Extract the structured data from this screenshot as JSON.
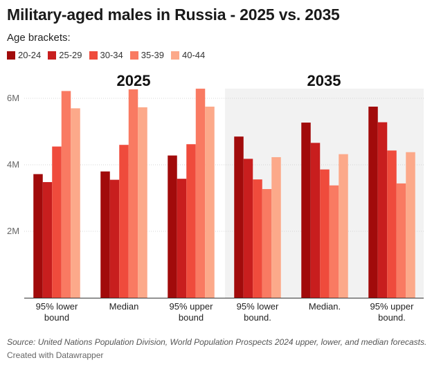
{
  "title": "Military-aged males in Russia - 2025 vs. 2035",
  "legend_title": "Age brackets:",
  "source": "Source: United Nations Population Division, World Population Prospects 2024 upper, lower, and median forecasts.",
  "credit": "Created with Datawrapper",
  "chart_data": {
    "type": "bar",
    "title": "Military-aged males in Russia - 2025 vs. 2035",
    "xlabel": "",
    "ylabel": "",
    "ylim": [
      0,
      6
    ],
    "yticks": [
      {
        "value": 2,
        "label": "2M"
      },
      {
        "value": 4,
        "label": "4M"
      },
      {
        "value": 6,
        "label": "6M"
      }
    ],
    "grid": true,
    "legend_placement": "top-left",
    "panels": [
      {
        "label": "2025",
        "shaded": false,
        "categories": [
          "95% lower|bound",
          "Median",
          "95% upper|bound"
        ]
      },
      {
        "label": "2035",
        "shaded": true,
        "categories": [
          "95% lower|bound.",
          "Median.",
          "95% upper|bound."
        ]
      }
    ],
    "series": [
      {
        "name": "20-24",
        "color": "#a10b0b",
        "values": [
          3.72,
          3.8,
          4.28,
          4.85,
          5.27,
          5.75
        ]
      },
      {
        "name": "25-29",
        "color": "#c81e1e",
        "values": [
          3.48,
          3.55,
          3.58,
          4.18,
          4.66,
          5.28
        ]
      },
      {
        "name": "30-34",
        "color": "#ef4b3c",
        "values": [
          4.55,
          4.6,
          4.62,
          3.56,
          3.86,
          4.43
        ]
      },
      {
        "name": "35-39",
        "color": "#f97a62",
        "values": [
          6.22,
          6.27,
          6.29,
          3.27,
          3.38,
          3.44
        ]
      },
      {
        "name": "40-44",
        "color": "#fca98a",
        "values": [
          5.7,
          5.73,
          5.75,
          4.23,
          4.32,
          4.38
        ]
      }
    ]
  }
}
